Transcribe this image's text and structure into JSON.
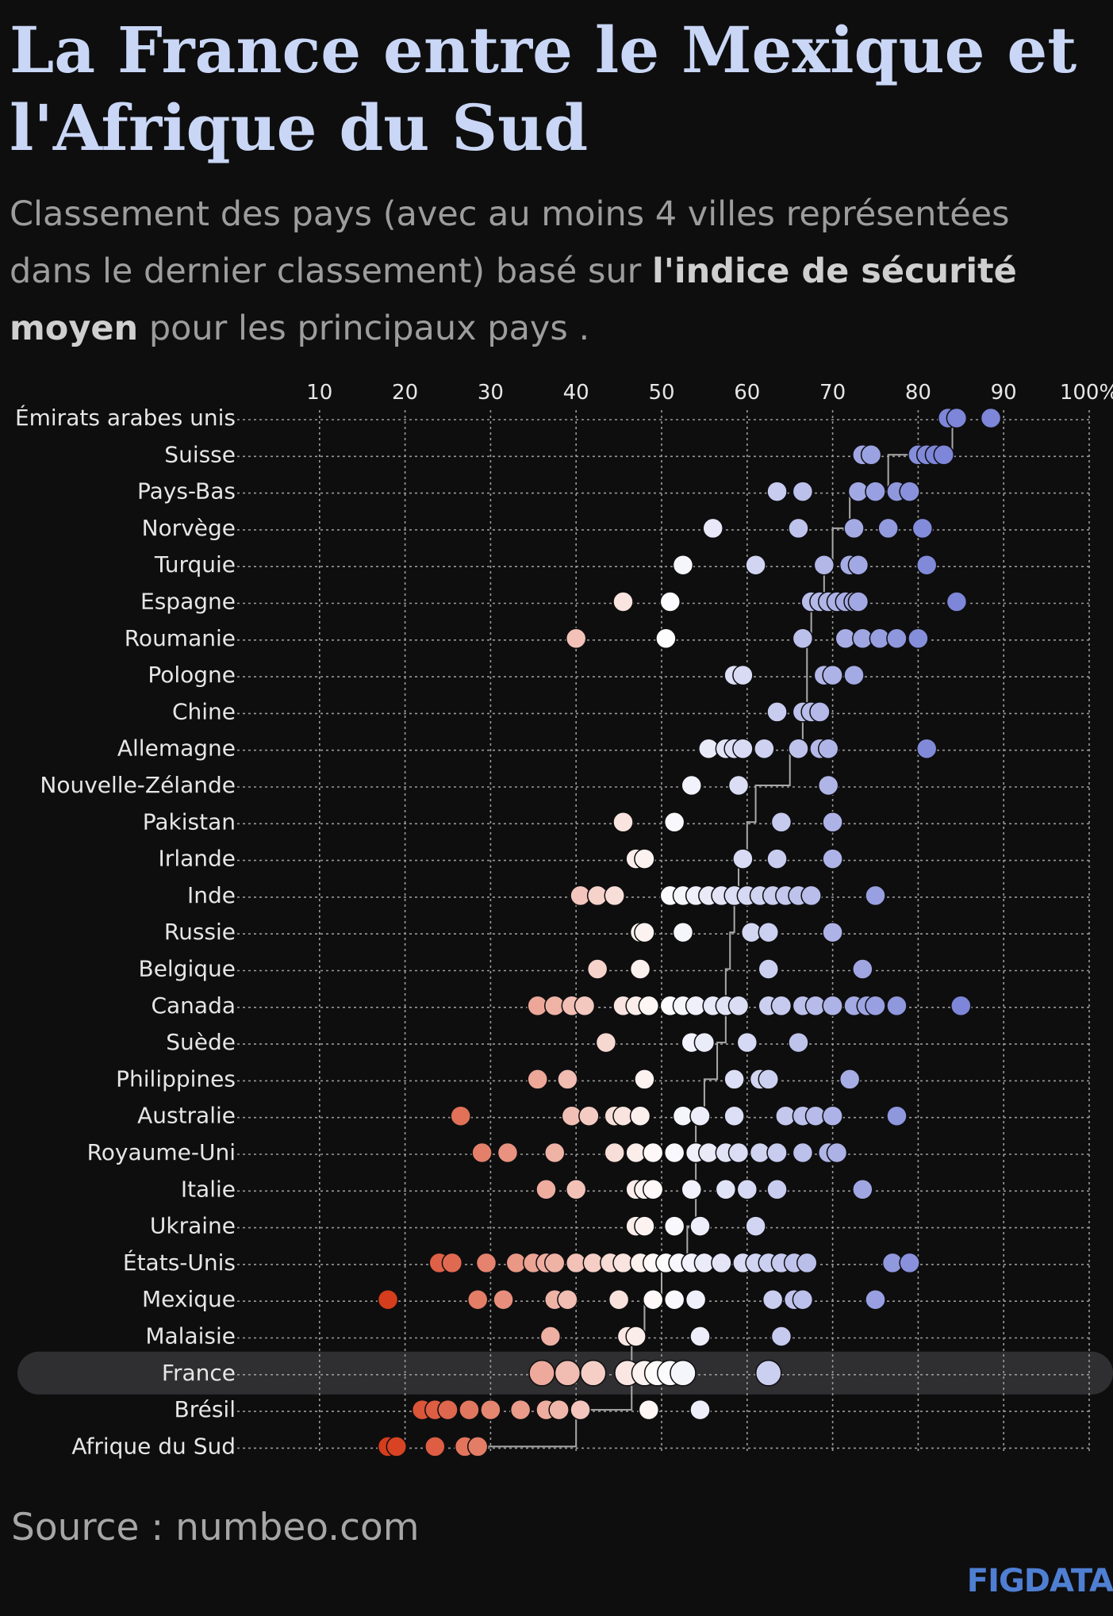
{
  "header": {
    "title": "La France entre le Mexique et l'Afrique du Sud",
    "subtitle_start": "Classement des pays (avec au moins 4 villes représentées dans le dernier classement) basé sur ",
    "subtitle_bold": "l'indice de sécurité moyen",
    "subtitle_end": " pour les principaux pays ."
  },
  "footer": {
    "source": "Source : numbeo.com",
    "logo": "FIGDATA"
  },
  "colors": {
    "background": "#0e0e0f",
    "low": "#d63d1c",
    "mid": "#ffffff",
    "high": "#7d86d8",
    "highlight_row": "#2f2f31",
    "grid": "#9a9a9a"
  },
  "chart_data": {
    "type": "scatter",
    "subtype": "dot-strip per country with mean connector line",
    "x_tick_labels": [
      "10",
      "20",
      "30",
      "40",
      "50",
      "60",
      "70",
      "80",
      "90",
      "100%"
    ],
    "xlim": [
      0,
      100
    ],
    "grid": true,
    "highlight": "France",
    "countries": [
      {
        "name": "Émirats arabes unis",
        "mean": 84,
        "values": [
          83.5,
          84.5,
          88.5
        ]
      },
      {
        "name": "Suisse",
        "mean": 76.5,
        "values": [
          73.5,
          74.5,
          80,
          81,
          82,
          83
        ]
      },
      {
        "name": "Pays-Bas",
        "mean": 72,
        "values": [
          63.5,
          66.5,
          73,
          75,
          77.5,
          79
        ]
      },
      {
        "name": "Norvège",
        "mean": 70,
        "values": [
          56,
          66,
          72.5,
          76.5,
          80.5
        ]
      },
      {
        "name": "Turquie",
        "mean": 69,
        "values": [
          52.5,
          61,
          69,
          72,
          73,
          81
        ]
      },
      {
        "name": "Espagne",
        "mean": 67.5,
        "values": [
          45.5,
          51,
          67.5,
          68.5,
          69.5,
          70.5,
          71.5,
          72.5,
          73,
          84.5
        ]
      },
      {
        "name": "Roumanie",
        "mean": 67,
        "values": [
          40,
          50.5,
          66.5,
          71.5,
          73.5,
          75.5,
          77.5,
          80
        ]
      },
      {
        "name": "Pologne",
        "mean": 67,
        "values": [
          58.5,
          59.5,
          69,
          70,
          72.5
        ]
      },
      {
        "name": "Chine",
        "mean": 66.5,
        "values": [
          63.5,
          66.5,
          67.5,
          68.5
        ]
      },
      {
        "name": "Allemagne",
        "mean": 65,
        "values": [
          55.5,
          57.5,
          58.5,
          59.5,
          62,
          66,
          68.5,
          69.5,
          81
        ]
      },
      {
        "name": "Nouvelle-Zélande",
        "mean": 61,
        "values": [
          53.5,
          59,
          69.5
        ]
      },
      {
        "name": "Pakistan",
        "mean": 60,
        "values": [
          45.5,
          51.5,
          64,
          70
        ]
      },
      {
        "name": "Irlande",
        "mean": 59,
        "values": [
          47,
          48,
          59.5,
          63.5,
          70
        ]
      },
      {
        "name": "Inde",
        "mean": 58.5,
        "values": [
          40.5,
          42.5,
          44.5,
          51,
          52.5,
          54,
          55.5,
          57,
          58.5,
          60,
          61.5,
          63,
          64.5,
          66,
          67.5,
          75
        ]
      },
      {
        "name": "Russie",
        "mean": 58,
        "values": [
          47.5,
          48,
          52.5,
          60.5,
          62.5,
          70
        ]
      },
      {
        "name": "Belgique",
        "mean": 57.5,
        "values": [
          42.5,
          47.5,
          62.5,
          73.5
        ]
      },
      {
        "name": "Canada",
        "mean": 57.5,
        "values": [
          35.5,
          37.5,
          39.5,
          41,
          45.5,
          47,
          48.5,
          51,
          52.5,
          54,
          56,
          57.5,
          59,
          62.5,
          64,
          66.5,
          68,
          70,
          72.5,
          74,
          75,
          77.5,
          85
        ]
      },
      {
        "name": "Suède",
        "mean": 56.5,
        "values": [
          43.5,
          53.5,
          55,
          60,
          66
        ]
      },
      {
        "name": "Philippines",
        "mean": 55,
        "values": [
          35.5,
          39,
          48,
          58.5,
          61.5,
          62.5,
          72
        ]
      },
      {
        "name": "Australie",
        "mean": 54,
        "values": [
          26.5,
          39.5,
          41.5,
          44.5,
          45.5,
          47.5,
          52.5,
          54.5,
          58.5,
          64.5,
          66.5,
          68,
          70,
          77.5
        ]
      },
      {
        "name": "Royaume-Uni",
        "mean": 54,
        "values": [
          29,
          32,
          37.5,
          44.5,
          47,
          49,
          51.5,
          54,
          55.5,
          57.5,
          59,
          61.5,
          63.5,
          66.5,
          69.5,
          70.5
        ]
      },
      {
        "name": "Italie",
        "mean": 54,
        "values": [
          36.5,
          40,
          47,
          48,
          49,
          53.5,
          57.5,
          60,
          63.5,
          73.5
        ]
      },
      {
        "name": "Ukraine",
        "mean": 53,
        "values": [
          47,
          48,
          51.5,
          54.5,
          61
        ]
      },
      {
        "name": "États-Unis",
        "mean": 50,
        "values": [
          24,
          25.5,
          29.5,
          33,
          35,
          36.5,
          37.5,
          40,
          42,
          44,
          45.5,
          47.5,
          49,
          50.5,
          52,
          53.5,
          55,
          57,
          59.5,
          61,
          62.5,
          64,
          65.5,
          67,
          77,
          79
        ]
      },
      {
        "name": "Mexique",
        "mean": 48,
        "values": [
          18,
          28.5,
          31.5,
          37.5,
          39,
          45,
          49,
          51.5,
          54,
          63,
          65.5,
          66.5,
          75
        ]
      },
      {
        "name": "Malaisie",
        "mean": 46.5,
        "values": [
          37,
          46,
          47,
          54.5,
          64
        ]
      },
      {
        "name": "France",
        "mean": 46.5,
        "values": [
          36,
          39,
          42,
          46,
          48,
          49.5,
          51,
          52.5,
          62.5
        ]
      },
      {
        "name": "Brésil",
        "mean": 40,
        "values": [
          22,
          23.5,
          25,
          27.5,
          30,
          33.5,
          36.5,
          38,
          40.5,
          48.5,
          54.5
        ]
      },
      {
        "name": "Afrique du Sud",
        "mean": 27.5,
        "values": [
          18,
          19,
          23.5,
          27,
          28.5
        ]
      }
    ]
  }
}
